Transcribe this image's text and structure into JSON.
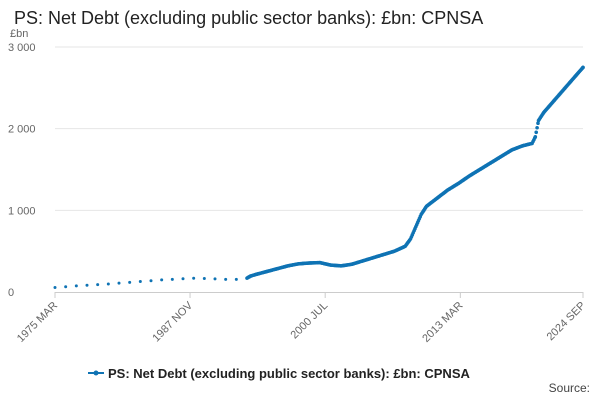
{
  "chart_data": {
    "type": "line",
    "title": "PS: Net Debt (excluding public sector banks): £bn: CPNSA",
    "ylabel": "£bn",
    "ylim": [
      0,
      3000
    ],
    "xlim": [
      1975.17,
      2024.67
    ],
    "y_ticks": [
      {
        "value": 0,
        "label": "0"
      },
      {
        "value": 1000,
        "label": "1 000"
      },
      {
        "value": 2000,
        "label": "2 000"
      },
      {
        "value": 3000,
        "label": "3 000"
      }
    ],
    "x_ticks": [
      {
        "value": 1975.17,
        "label": "1975 MAR"
      },
      {
        "value": 1987.83,
        "label": "1987 NOV"
      },
      {
        "value": 2000.5,
        "label": "2000 JUL"
      },
      {
        "value": 2013.17,
        "label": "2013 MAR"
      },
      {
        "value": 2024.67,
        "label": "2024 SEP"
      }
    ],
    "grid": true,
    "legend_position": "bottom",
    "color": "#0f73b4",
    "series": [
      {
        "name": "PS: Net Debt (excluding public sector banks): £bn: CPNSA",
        "points": [
          [
            1975.17,
            55
          ],
          [
            1976.17,
            65
          ],
          [
            1977.17,
            75
          ],
          [
            1978.17,
            82
          ],
          [
            1979.17,
            90
          ],
          [
            1980.17,
            98
          ],
          [
            1981.17,
            108
          ],
          [
            1982.17,
            118
          ],
          [
            1983.17,
            128
          ],
          [
            1984.17,
            138
          ],
          [
            1985.17,
            148
          ],
          [
            1986.17,
            155
          ],
          [
            1987.17,
            162
          ],
          [
            1988.17,
            168
          ],
          [
            1989.17,
            165
          ],
          [
            1990.17,
            160
          ],
          [
            1991.17,
            155
          ],
          [
            1992.17,
            155
          ],
          [
            1993.17,
            170
          ],
          [
            1993.5,
            195
          ],
          [
            1994,
            215
          ],
          [
            1995,
            250
          ],
          [
            1996,
            285
          ],
          [
            1997,
            320
          ],
          [
            1998,
            345
          ],
          [
            1999,
            355
          ],
          [
            2000,
            360
          ],
          [
            2001,
            330
          ],
          [
            2002,
            320
          ],
          [
            2003,
            340
          ],
          [
            2004,
            380
          ],
          [
            2005,
            420
          ],
          [
            2006,
            460
          ],
          [
            2007,
            500
          ],
          [
            2008,
            560
          ],
          [
            2008.5,
            650
          ],
          [
            2009,
            800
          ],
          [
            2009.5,
            950
          ],
          [
            2010,
            1050
          ],
          [
            2011,
            1150
          ],
          [
            2012,
            1250
          ],
          [
            2013,
            1330
          ],
          [
            2014,
            1420
          ],
          [
            2015,
            1500
          ],
          [
            2016,
            1580
          ],
          [
            2017,
            1660
          ],
          [
            2018,
            1740
          ],
          [
            2019,
            1790
          ],
          [
            2019.9,
            1820
          ],
          [
            2020.2,
            1900
          ],
          [
            2020.5,
            2100
          ],
          [
            2021,
            2200
          ],
          [
            2022,
            2350
          ],
          [
            2023,
            2500
          ],
          [
            2024,
            2650
          ],
          [
            2024.67,
            2750
          ]
        ]
      }
    ],
    "source_label": "Source:"
  }
}
